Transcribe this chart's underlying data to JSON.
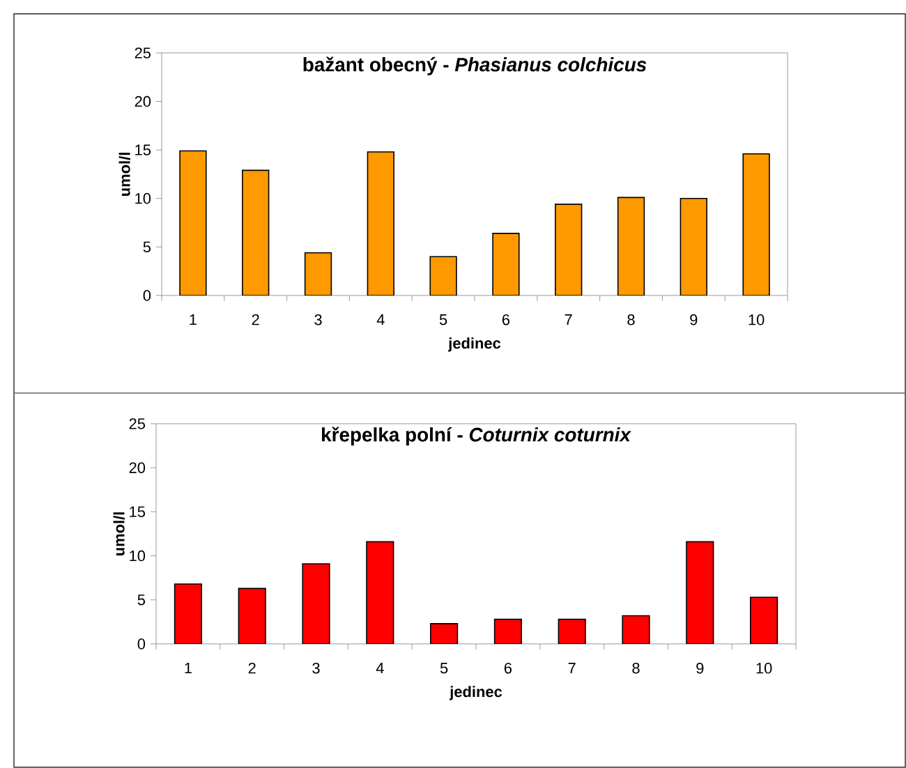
{
  "chart_data": [
    {
      "type": "bar",
      "title": "bažant obecný - *Phasianus colchicus*",
      "xlabel": "jedinec",
      "ylabel": "umol/l",
      "categories": [
        "1",
        "2",
        "3",
        "4",
        "5",
        "6",
        "7",
        "8",
        "9",
        "10"
      ],
      "values": [
        14.9,
        12.9,
        4.4,
        14.8,
        4.0,
        6.4,
        9.4,
        10.1,
        10.0,
        14.6
      ],
      "color": "#ff9900",
      "ylim": [
        0,
        25
      ],
      "yticks": [
        0,
        5,
        10,
        15,
        20,
        25
      ]
    },
    {
      "type": "bar",
      "title": "křepelka polní - *Coturnix coturnix*",
      "xlabel": "jedinec",
      "ylabel": "umol/l",
      "categories": [
        "1",
        "2",
        "3",
        "4",
        "5",
        "6",
        "7",
        "8",
        "9",
        "10"
      ],
      "values": [
        6.8,
        6.3,
        9.1,
        11.6,
        2.3,
        2.8,
        2.8,
        3.2,
        11.6,
        5.3
      ],
      "color": "#ff0000",
      "ylim": [
        0,
        25
      ],
      "yticks": [
        0,
        5,
        10,
        15,
        20,
        25
      ]
    }
  ]
}
